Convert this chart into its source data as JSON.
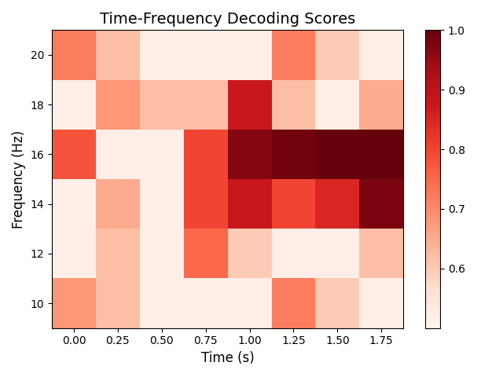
{
  "title": "Time-Frequency Decoding Scores",
  "xlabel": "Time (s)",
  "ylabel": "Frequency (Hz)",
  "times": [
    0.0,
    0.25,
    0.5,
    0.75,
    1.0,
    1.25,
    1.5,
    1.75
  ],
  "freqs": [
    10,
    12,
    14,
    16,
    18,
    20
  ],
  "vmin": 0.5,
  "vmax": 1.0,
  "cmap": "Reds",
  "colorbar_ticks": [
    0.6,
    0.7,
    0.8,
    0.9,
    1.0
  ],
  "data": [
    [
      0.68,
      0.62,
      0.52,
      0.52,
      0.52,
      0.72,
      0.6,
      0.52
    ],
    [
      0.52,
      0.62,
      0.52,
      0.75,
      0.6,
      0.52,
      0.52,
      0.62
    ],
    [
      0.52,
      0.65,
      0.52,
      0.8,
      0.88,
      0.8,
      0.85,
      0.98
    ],
    [
      0.78,
      0.52,
      0.52,
      0.8,
      0.97,
      0.99,
      1.0,
      1.0
    ],
    [
      0.52,
      0.68,
      0.62,
      0.62,
      0.88,
      0.62,
      0.52,
      0.65
    ],
    [
      0.72,
      0.62,
      0.52,
      0.52,
      0.52,
      0.72,
      0.6,
      0.52
    ]
  ],
  "title_fontsize": 14,
  "label_fontsize": 12,
  "tick_fontsize": 10
}
